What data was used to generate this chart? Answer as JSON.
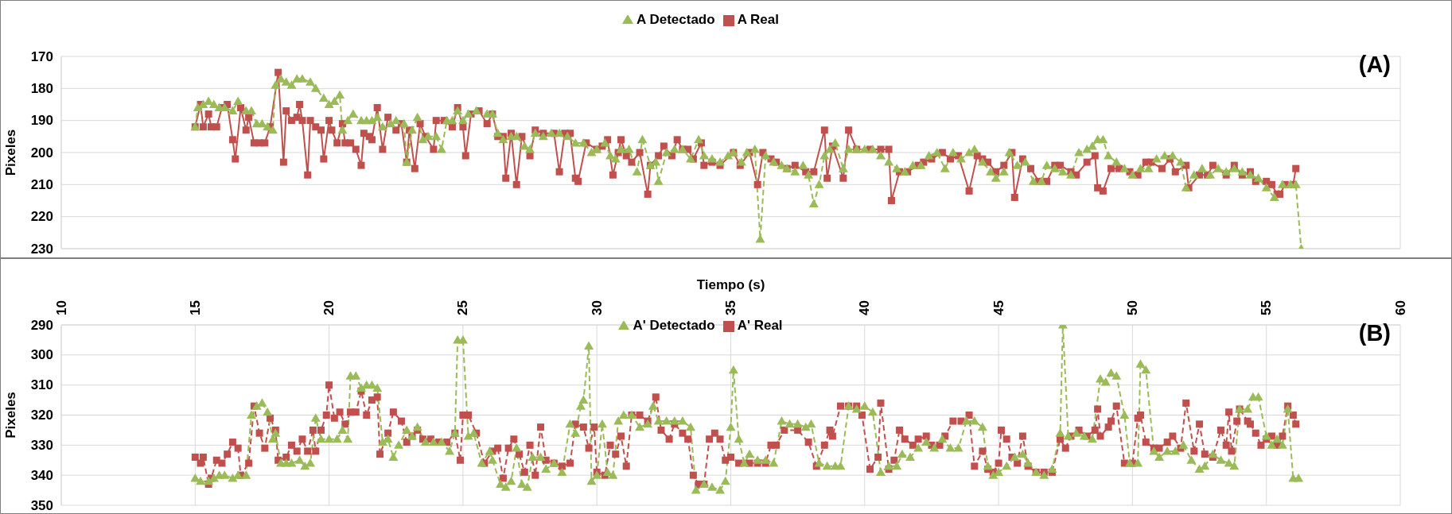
{
  "chart_data": [
    {
      "type": "line",
      "ylabel": "Pixeles",
      "xlim": [
        10,
        60
      ],
      "xticks": [
        10,
        15,
        20,
        25,
        30,
        35,
        40,
        45,
        50,
        55,
        60
      ],
      "ylim": [
        230,
        170
      ],
      "yticks": [
        170,
        180,
        190,
        200,
        210,
        220,
        230
      ],
      "tick_labels": "y",
      "grid": true,
      "legend": "top",
      "annotations": [
        "(A)"
      ],
      "series": [
        {
          "name": "A Real",
          "color": "#c0504d",
          "marker": "square",
          "line_style": "solid",
          "x": [
            15.0,
            15.2,
            15.3,
            15.5,
            15.6,
            15.8,
            16.0,
            16.2,
            16.4,
            16.5,
            16.7,
            16.9,
            17.0,
            17.2,
            17.4,
            17.6,
            17.8,
            18.1,
            18.3,
            18.4,
            18.6,
            18.8,
            18.9,
            19.0,
            19.2,
            19.3,
            19.5,
            19.7,
            19.8,
            20.0,
            20.1,
            20.3,
            20.5,
            20.6,
            20.8,
            21.0,
            21.2,
            21.3,
            21.5,
            21.6,
            21.8,
            22.0,
            22.2,
            22.5,
            22.7,
            22.9,
            23.0,
            23.2,
            23.4,
            23.6,
            23.9,
            24.0,
            24.3,
            24.6,
            24.8,
            25.0,
            25.1,
            25.3,
            25.6,
            25.9,
            26.1,
            26.3,
            26.5,
            26.6,
            26.8,
            27.0,
            27.2,
            27.5,
            27.7,
            28.0,
            28.4,
            28.6,
            28.8,
            29.0,
            29.2,
            29.3,
            29.6,
            30.0,
            30.2,
            30.4,
            30.6,
            30.8,
            30.9,
            31.1,
            31.3,
            31.6,
            31.9,
            32.0,
            32.3,
            32.5,
            32.8,
            33.0,
            33.2,
            33.4,
            33.6,
            33.9,
            34.0,
            34.3,
            34.6,
            35.1,
            35.35,
            35.7,
            36.0,
            36.2,
            36.5,
            36.7,
            37.1,
            37.4,
            37.8,
            38.1,
            38.5,
            38.6,
            38.8,
            39.2,
            39.4,
            39.7,
            40.2,
            40.6,
            40.9,
            41.0,
            41.3,
            41.6,
            42.0,
            42.2,
            42.5,
            42.9,
            43.2,
            43.5,
            43.9,
            44.2,
            44.4,
            44.6,
            44.9,
            45.2,
            45.5,
            45.6,
            45.9,
            46.2,
            46.5,
            46.8,
            47.1,
            47.3,
            47.7,
            47.9,
            48.3,
            48.6,
            48.7,
            48.9,
            49.2,
            49.5,
            49.9,
            50.2,
            50.5,
            50.7,
            51.1,
            51.4,
            51.6,
            52.0,
            52.1,
            52.5,
            52.8,
            53.0,
            53.5,
            53.8,
            54.1,
            54.4,
            54.6,
            55.0,
            55.2,
            55.4,
            55.5,
            55.7,
            56.0,
            56.1
          ],
          "values": [
            192,
            185,
            192,
            188,
            192,
            192,
            186,
            185,
            196,
            202,
            186,
            193,
            189,
            197,
            197,
            197,
            192,
            175,
            203,
            187,
            190,
            189,
            185,
            190,
            207,
            190,
            192,
            193,
            202,
            190,
            193,
            197,
            191,
            197,
            197,
            199,
            204,
            194,
            195,
            196,
            186,
            199,
            189,
            193,
            191,
            203,
            193,
            205,
            191,
            195,
            199,
            190,
            190,
            192,
            186,
            192,
            201,
            188,
            187,
            191,
            188,
            195,
            195,
            208,
            194,
            210,
            195,
            201,
            193,
            194,
            194,
            206,
            194,
            194,
            208,
            209,
            197,
            199,
            198,
            196,
            207,
            200,
            196,
            201,
            203,
            200,
            213,
            204,
            201,
            198,
            201,
            196,
            199,
            199,
            202,
            197,
            204,
            203,
            204,
            200,
            204,
            200,
            210,
            200,
            202,
            203,
            205,
            204,
            206,
            206,
            193,
            208,
            198,
            208,
            193,
            199,
            199,
            199,
            199,
            215,
            206,
            206,
            204,
            203,
            202,
            200,
            202,
            201,
            212,
            201,
            202,
            203,
            206,
            204,
            200,
            214,
            202,
            205,
            209,
            209,
            204,
            204,
            206,
            207,
            203,
            201,
            211,
            212,
            205,
            205,
            206,
            207,
            203,
            203,
            205,
            202,
            206,
            204,
            211,
            207,
            207,
            204,
            207,
            204,
            207,
            206,
            209,
            209,
            210,
            213,
            213,
            210,
            210,
            205
          ]
        },
        {
          "name": "A Detectado",
          "color": "#9bbb59",
          "marker": "triangle",
          "line_style": "dashed",
          "x": [
            15.0,
            15.1,
            15.3,
            15.5,
            15.7,
            15.9,
            16.1,
            16.4,
            16.6,
            16.9,
            17.1,
            17.3,
            17.5,
            17.7,
            17.9,
            18.0,
            18.2,
            18.4,
            18.6,
            18.8,
            19.0,
            19.3,
            19.5,
            19.8,
            20.0,
            20.2,
            20.4,
            20.5,
            20.7,
            20.9,
            21.2,
            21.4,
            21.6,
            21.8,
            22.0,
            22.3,
            22.5,
            22.8,
            22.9,
            23.1,
            23.3,
            23.5,
            23.7,
            24.0,
            24.2,
            24.4,
            24.6,
            24.8,
            25.0,
            25.2,
            25.5,
            25.9,
            26.1,
            26.3,
            26.5,
            26.8,
            27.0,
            27.3,
            27.5,
            27.7,
            28.0,
            28.3,
            28.6,
            28.9,
            29.2,
            29.5,
            29.8,
            30.0,
            30.3,
            30.5,
            30.7,
            30.9,
            31.2,
            31.5,
            31.7,
            32.0,
            32.2,
            32.3,
            32.6,
            32.9,
            33.2,
            33.5,
            33.8,
            34.0,
            34.3,
            34.6,
            34.9,
            35.1,
            35.4,
            35.6,
            35.9,
            36.1,
            36.3,
            36.6,
            36.9,
            37.1,
            37.4,
            37.7,
            37.9,
            38.1,
            38.3,
            38.5,
            38.7,
            38.9,
            39.2,
            39.4,
            39.7,
            40.0,
            40.3,
            40.6,
            40.9,
            41.2,
            41.5,
            41.8,
            42.1,
            42.4,
            42.7,
            43.0,
            43.3,
            43.6,
            43.9,
            44.1,
            44.4,
            44.7,
            44.9,
            45.2,
            45.4,
            45.7,
            46.0,
            46.3,
            46.6,
            46.8,
            47.1,
            47.4,
            47.7,
            48.0,
            48.3,
            48.5,
            48.7,
            48.9,
            49.1,
            49.4,
            49.7,
            50.0,
            50.3,
            50.6,
            50.9,
            51.2,
            51.5,
            51.8,
            52.0,
            52.3,
            52.6,
            52.9,
            53.2,
            53.5,
            53.8,
            54.1,
            54.4,
            54.7,
            55.0,
            55.3,
            55.6,
            55.9,
            56.1,
            56.3
          ],
          "values": [
            192,
            186,
            185,
            184,
            185,
            186,
            186,
            187,
            184,
            187,
            187,
            191,
            191,
            192,
            193,
            179,
            177,
            178,
            179,
            177,
            177,
            178,
            180,
            183,
            185,
            184,
            182,
            193,
            190,
            188,
            190,
            190,
            190,
            189,
            192,
            191,
            190,
            191,
            203,
            193,
            189,
            196,
            195,
            195,
            199,
            190,
            190,
            187,
            190,
            188,
            187,
            188,
            188,
            194,
            196,
            195,
            195,
            198,
            199,
            194,
            195,
            194,
            194,
            195,
            197,
            197,
            200,
            199,
            197,
            201,
            202,
            199,
            199,
            206,
            196,
            204,
            203,
            209,
            200,
            199,
            199,
            202,
            196,
            201,
            202,
            203,
            201,
            200,
            203,
            200,
            199,
            227,
            201,
            203,
            204,
            205,
            206,
            204,
            207,
            216,
            210,
            201,
            199,
            197,
            205,
            199,
            199,
            199,
            199,
            201,
            203,
            205,
            206,
            204,
            204,
            201,
            200,
            205,
            200,
            202,
            200,
            199,
            203,
            206,
            208,
            206,
            200,
            204,
            203,
            209,
            209,
            204,
            205,
            206,
            207,
            200,
            199,
            198,
            196,
            196,
            201,
            203,
            205,
            207,
            205,
            205,
            202,
            201,
            201,
            203,
            211,
            207,
            205,
            207,
            205,
            206,
            205,
            206,
            207,
            208,
            211,
            214,
            210,
            210,
            210,
            230
          ]
        }
      ]
    },
    {
      "type": "line",
      "xlabel": "Tiempo (s)",
      "ylabel": "Pixeles",
      "xlim": [
        10,
        60
      ],
      "xticks": [
        10,
        15,
        20,
        25,
        30,
        35,
        40,
        45,
        50,
        55,
        60
      ],
      "ylim": [
        350,
        290
      ],
      "yticks": [
        290,
        300,
        310,
        320,
        330,
        340,
        350
      ],
      "grid": true,
      "legend": "top",
      "annotations": [
        "(B)"
      ],
      "series": [
        {
          "name": "A' Real",
          "color": "#c0504d",
          "marker": "square",
          "line_style": "dashed",
          "x": [
            15.0,
            15.2,
            15.3,
            15.5,
            15.6,
            15.8,
            16.0,
            16.2,
            16.4,
            16.6,
            16.7,
            17.0,
            17.2,
            17.4,
            17.6,
            17.8,
            18.0,
            18.1,
            18.4,
            18.6,
            18.8,
            19.0,
            19.2,
            19.4,
            19.5,
            19.7,
            19.9,
            20.0,
            20.2,
            20.4,
            20.6,
            20.8,
            21.0,
            21.2,
            21.4,
            21.6,
            21.8,
            21.9,
            22.2,
            22.4,
            22.7,
            22.9,
            23.1,
            23.3,
            23.5,
            23.8,
            24.1,
            24.4,
            24.7,
            24.9,
            25.0,
            25.2,
            25.5,
            25.8,
            26.1,
            26.3,
            26.5,
            26.7,
            26.9,
            27.1,
            27.3,
            27.5,
            27.7,
            27.9,
            28.1,
            28.4,
            28.7,
            29.0,
            29.2,
            29.5,
            29.7,
            29.9,
            30.0,
            30.3,
            30.5,
            30.7,
            30.9,
            31.1,
            31.3,
            31.6,
            31.9,
            32.2,
            32.4,
            32.7,
            32.9,
            33.2,
            33.4,
            33.6,
            33.8,
            34.0,
            34.2,
            34.4,
            34.6,
            34.8,
            35.0,
            35.3,
            35.7,
            36.0,
            36.3,
            36.5,
            36.7,
            37.0,
            37.5,
            37.9,
            38.2,
            38.5,
            38.7,
            38.8,
            39.1,
            39.4,
            39.7,
            39.9,
            40.2,
            40.5,
            40.6,
            40.9,
            41.1,
            41.3,
            41.5,
            41.8,
            42.0,
            42.3,
            42.5,
            42.8,
            43.0,
            43.3,
            43.6,
            43.9,
            44.1,
            44.4,
            44.6,
            44.8,
            45.0,
            45.1,
            45.3,
            45.5,
            45.7,
            45.9,
            46.1,
            46.4,
            46.7,
            47.0,
            47.3,
            47.5,
            47.7,
            48.0,
            48.3,
            48.6,
            48.7,
            48.8,
            49.1,
            49.2,
            49.4,
            49.7,
            50.0,
            50.2,
            50.3,
            50.5,
            50.8,
            51.0,
            51.3,
            51.5,
            51.8,
            52.0,
            52.3,
            52.5,
            52.7,
            53.0,
            53.3,
            53.5,
            53.6,
            53.7,
            53.9,
            54.0,
            54.3,
            54.4,
            54.6,
            54.8,
            55.0,
            55.2,
            55.4,
            55.6,
            55.8,
            56.0,
            56.1
          ],
          "values": [
            334,
            336,
            334,
            343,
            341,
            335,
            336,
            333,
            329,
            331,
            340,
            336,
            317,
            326,
            331,
            321,
            325,
            335,
            334,
            330,
            332,
            328,
            332,
            325,
            332,
            325,
            320,
            310,
            321,
            319,
            323,
            319,
            319,
            312,
            320,
            315,
            314,
            333,
            326,
            319,
            322,
            329,
            327,
            325,
            328,
            328,
            329,
            329,
            326,
            335,
            320,
            320,
            326,
            336,
            332,
            331,
            341,
            331,
            328,
            333,
            339,
            330,
            340,
            324,
            335,
            336,
            337,
            336,
            323,
            324,
            331,
            324,
            339,
            340,
            330,
            333,
            327,
            337,
            320,
            320,
            322,
            314,
            325,
            328,
            323,
            326,
            328,
            340,
            343,
            343,
            328,
            326,
            328,
            335,
            334,
            336,
            336,
            336,
            336,
            330,
            330,
            325,
            325,
            329,
            337,
            330,
            325,
            327,
            317,
            317,
            317,
            320,
            338,
            334,
            316,
            338,
            335,
            325,
            328,
            330,
            328,
            327,
            330,
            330,
            327,
            322,
            322,
            320,
            337,
            332,
            338,
            339,
            336,
            325,
            328,
            334,
            336,
            327,
            337,
            339,
            339,
            339,
            328,
            331,
            327,
            325,
            327,
            325,
            318,
            327,
            324,
            322,
            317,
            336,
            336,
            321,
            320,
            329,
            331,
            331,
            329,
            327,
            331,
            316,
            332,
            323,
            333,
            334,
            325,
            330,
            319,
            332,
            322,
            318,
            322,
            323,
            326,
            330,
            328,
            327,
            330,
            327,
            317,
            320,
            323
          ]
        },
        {
          "name": "A' Detectado",
          "color": "#9bbb59",
          "marker": "triangle",
          "line_style": "dashed",
          "x": [
            15.0,
            15.2,
            15.5,
            15.7,
            15.9,
            16.1,
            16.4,
            16.6,
            16.9,
            17.1,
            17.3,
            17.5,
            17.7,
            17.9,
            18.0,
            18.2,
            18.4,
            18.6,
            18.9,
            19.1,
            19.3,
            19.5,
            19.7,
            20.0,
            20.3,
            20.5,
            20.7,
            20.8,
            21.0,
            21.2,
            21.4,
            21.6,
            21.8,
            22.0,
            22.2,
            22.4,
            22.6,
            22.9,
            23.1,
            23.3,
            23.6,
            23.9,
            24.2,
            24.5,
            24.7,
            24.8,
            25.0,
            25.2,
            25.4,
            25.7,
            26.0,
            26.1,
            26.4,
            26.6,
            26.8,
            27.0,
            27.2,
            27.4,
            27.6,
            27.9,
            28.1,
            28.4,
            28.7,
            29.0,
            29.2,
            29.4,
            29.5,
            29.7,
            29.8,
            30.0,
            30.2,
            30.4,
            30.6,
            30.8,
            31.0,
            31.3,
            31.6,
            31.9,
            32.1,
            32.3,
            32.6,
            32.9,
            33.2,
            33.5,
            33.7,
            34.0,
            34.3,
            34.6,
            34.8,
            35.0,
            35.1,
            35.3,
            35.5,
            35.7,
            36.0,
            36.3,
            36.6,
            36.9,
            37.2,
            37.5,
            37.8,
            38.0,
            38.3,
            38.6,
            38.9,
            39.1,
            39.4,
            39.7,
            40.0,
            40.3,
            40.6,
            40.9,
            41.2,
            41.4,
            41.7,
            42.0,
            42.3,
            42.6,
            42.9,
            43.2,
            43.5,
            43.8,
            44.1,
            44.4,
            44.6,
            44.8,
            45.0,
            45.3,
            45.6,
            45.9,
            46.1,
            46.4,
            46.7,
            47.0,
            47.3,
            47.4,
            47.6,
            47.9,
            48.2,
            48.5,
            48.8,
            49.0,
            49.2,
            49.4,
            49.7,
            49.9,
            50.2,
            50.3,
            50.5,
            50.8,
            51.0,
            51.3,
            51.6,
            51.9,
            52.2,
            52.5,
            52.7,
            53.0,
            53.3,
            53.6,
            53.8,
            54.0,
            54.3,
            54.5,
            54.7,
            55.0,
            55.2,
            55.4,
            55.6,
            55.8,
            56.0,
            56.2
          ],
          "values": [
            341,
            342,
            342,
            341,
            340,
            340,
            341,
            340,
            340,
            320,
            317,
            316,
            319,
            328,
            326,
            336,
            336,
            336,
            335,
            337,
            336,
            321,
            328,
            328,
            328,
            325,
            328,
            307,
            307,
            311,
            310,
            310,
            311,
            329,
            328,
            334,
            330,
            325,
            327,
            324,
            329,
            329,
            329,
            332,
            326,
            295,
            295,
            327,
            326,
            336,
            332,
            335,
            343,
            344,
            342,
            331,
            343,
            344,
            334,
            334,
            338,
            336,
            339,
            323,
            326,
            317,
            315,
            297,
            342,
            340,
            323,
            339,
            340,
            322,
            320,
            320,
            324,
            323,
            317,
            322,
            322,
            322,
            322,
            324,
            345,
            343,
            344,
            345,
            342,
            324,
            305,
            328,
            336,
            333,
            335,
            335,
            336,
            322,
            323,
            323,
            324,
            323,
            336,
            337,
            337,
            337,
            317,
            318,
            317,
            319,
            339,
            337,
            337,
            333,
            334,
            331,
            329,
            331,
            328,
            331,
            331,
            322,
            322,
            324,
            337,
            340,
            339,
            337,
            334,
            333,
            336,
            339,
            340,
            338,
            326,
            290,
            327,
            326,
            327,
            328,
            308,
            309,
            306,
            307,
            320,
            336,
            336,
            303,
            305,
            332,
            334,
            332,
            332,
            330,
            335,
            338,
            337,
            333,
            335,
            336,
            337,
            318,
            318,
            314,
            314,
            327,
            330,
            328,
            330,
            318,
            341,
            341
          ]
        }
      ]
    }
  ]
}
